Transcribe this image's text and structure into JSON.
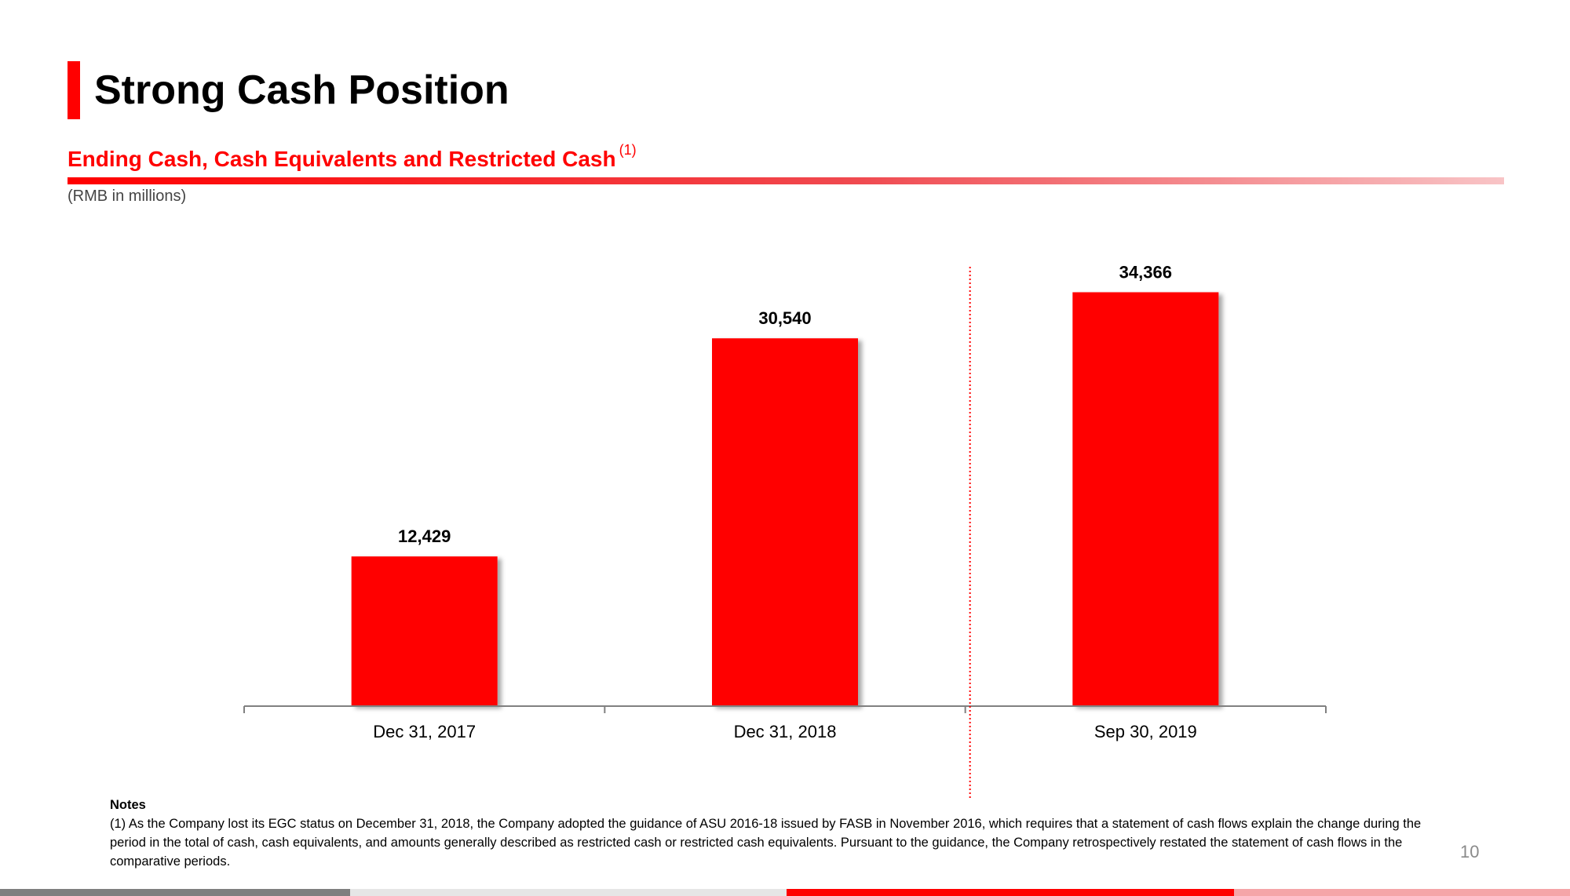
{
  "page": {
    "title": "Strong Cash Position",
    "subtitle": "Ending Cash, Cash Equivalents and Restricted Cash",
    "subtitle_footnote": "(1)",
    "units": "(RMB in millions)",
    "page_number": "10"
  },
  "colors": {
    "accent": "#ff0000",
    "bar": "#ff0000",
    "axis": "#808080",
    "text": "#000000",
    "muted": "#8a8a8a"
  },
  "chart_data": {
    "type": "bar",
    "title": "Ending Cash, Cash Equivalents and Restricted Cash",
    "xlabel": "",
    "ylabel": "RMB in millions",
    "categories": [
      "Dec 31, 2017",
      "Dec 31, 2018",
      "Sep 30, 2019"
    ],
    "values": [
      12429,
      30540,
      34366
    ],
    "data_labels": [
      "12,429",
      "30,540",
      "34,366"
    ],
    "ylim": [
      0,
      40000
    ],
    "grid": false,
    "legend": "none",
    "divider_after_category": 1
  },
  "notes": {
    "heading": "Notes",
    "items": [
      "(1) As the Company lost its EGC status on December 31, 2018, the Company adopted the guidance of ASU 2016-18 issued by FASB in November 2016, which requires that a statement of cash flows explain the change during the period in the total of cash, cash equivalents, and amounts generally described as restricted cash or restricted cash equivalents. Pursuant to the guidance, the Company retrospectively restated the statement of cash flows in the comparative periods."
    ]
  }
}
